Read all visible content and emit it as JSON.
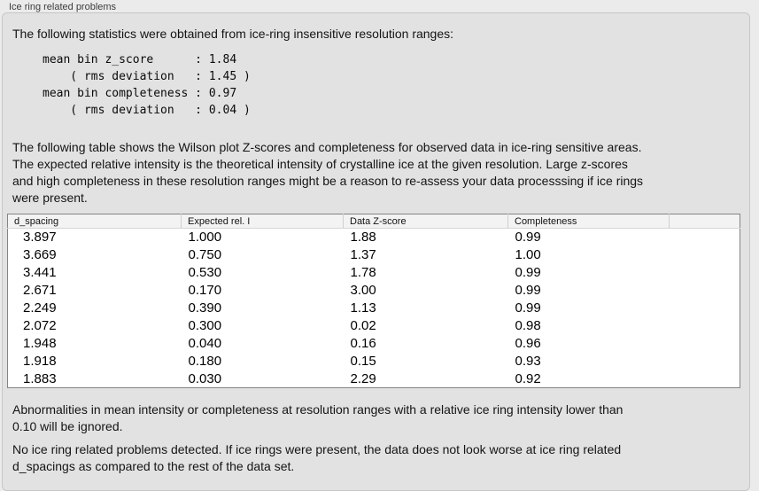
{
  "window": {
    "group_label": "Ice ring related problems"
  },
  "colors": {
    "page_bg": "#ebebeb",
    "panel_bg": "#e2e2e2",
    "panel_border": "#c7c7c7",
    "table_bg": "#ffffff",
    "table_border": "#848484",
    "table_header_bg": "#f3f3f3",
    "text": "#141414"
  },
  "intro": {
    "text": "The following statistics were obtained from ice-ring insensitive resolution ranges:"
  },
  "stats_block": "mean bin z_score      : 1.84\n    ( rms deviation   : 1.45 )\nmean bin completeness : 0.97\n    ( rms deviation   : 0.04 )",
  "table_note": "The following table shows the Wilson plot Z-scores and completeness for observed data in ice-ring sensitive areas.\nThe expected relative intensity is the theoretical intensity of crystalline ice at the given resolution. Large z-scores\nand high completeness in these resolution ranges might be a reason to re-assess your data processsing if ice rings\nwere present.",
  "table": {
    "headers": [
      "d_spacing",
      "Expected rel. I",
      "Data Z-score",
      "Completeness"
    ],
    "rows": [
      [
        "3.897",
        "1.000",
        "1.88",
        "0.99"
      ],
      [
        "3.669",
        "0.750",
        "1.37",
        "1.00"
      ],
      [
        "3.441",
        "0.530",
        "1.78",
        "0.99"
      ],
      [
        "2.671",
        "0.170",
        "3.00",
        "0.99"
      ],
      [
        "2.249",
        "0.390",
        "1.13",
        "0.99"
      ],
      [
        "2.072",
        "0.300",
        "0.02",
        "0.98"
      ],
      [
        "1.948",
        "0.040",
        "0.16",
        "0.96"
      ],
      [
        "1.918",
        "0.180",
        "0.15",
        "0.93"
      ],
      [
        "1.883",
        "0.030",
        "2.29",
        "0.92"
      ]
    ]
  },
  "notes": {
    "ignore_note": "Abnormalities in mean intensity or completeness at resolution ranges with a relative ice ring intensity lower than\n0.10 will be ignored.",
    "conclusion": "No ice ring related problems detected. If ice rings were present, the data does not look worse at ice ring related\nd_spacings as compared to the rest of the data set."
  }
}
